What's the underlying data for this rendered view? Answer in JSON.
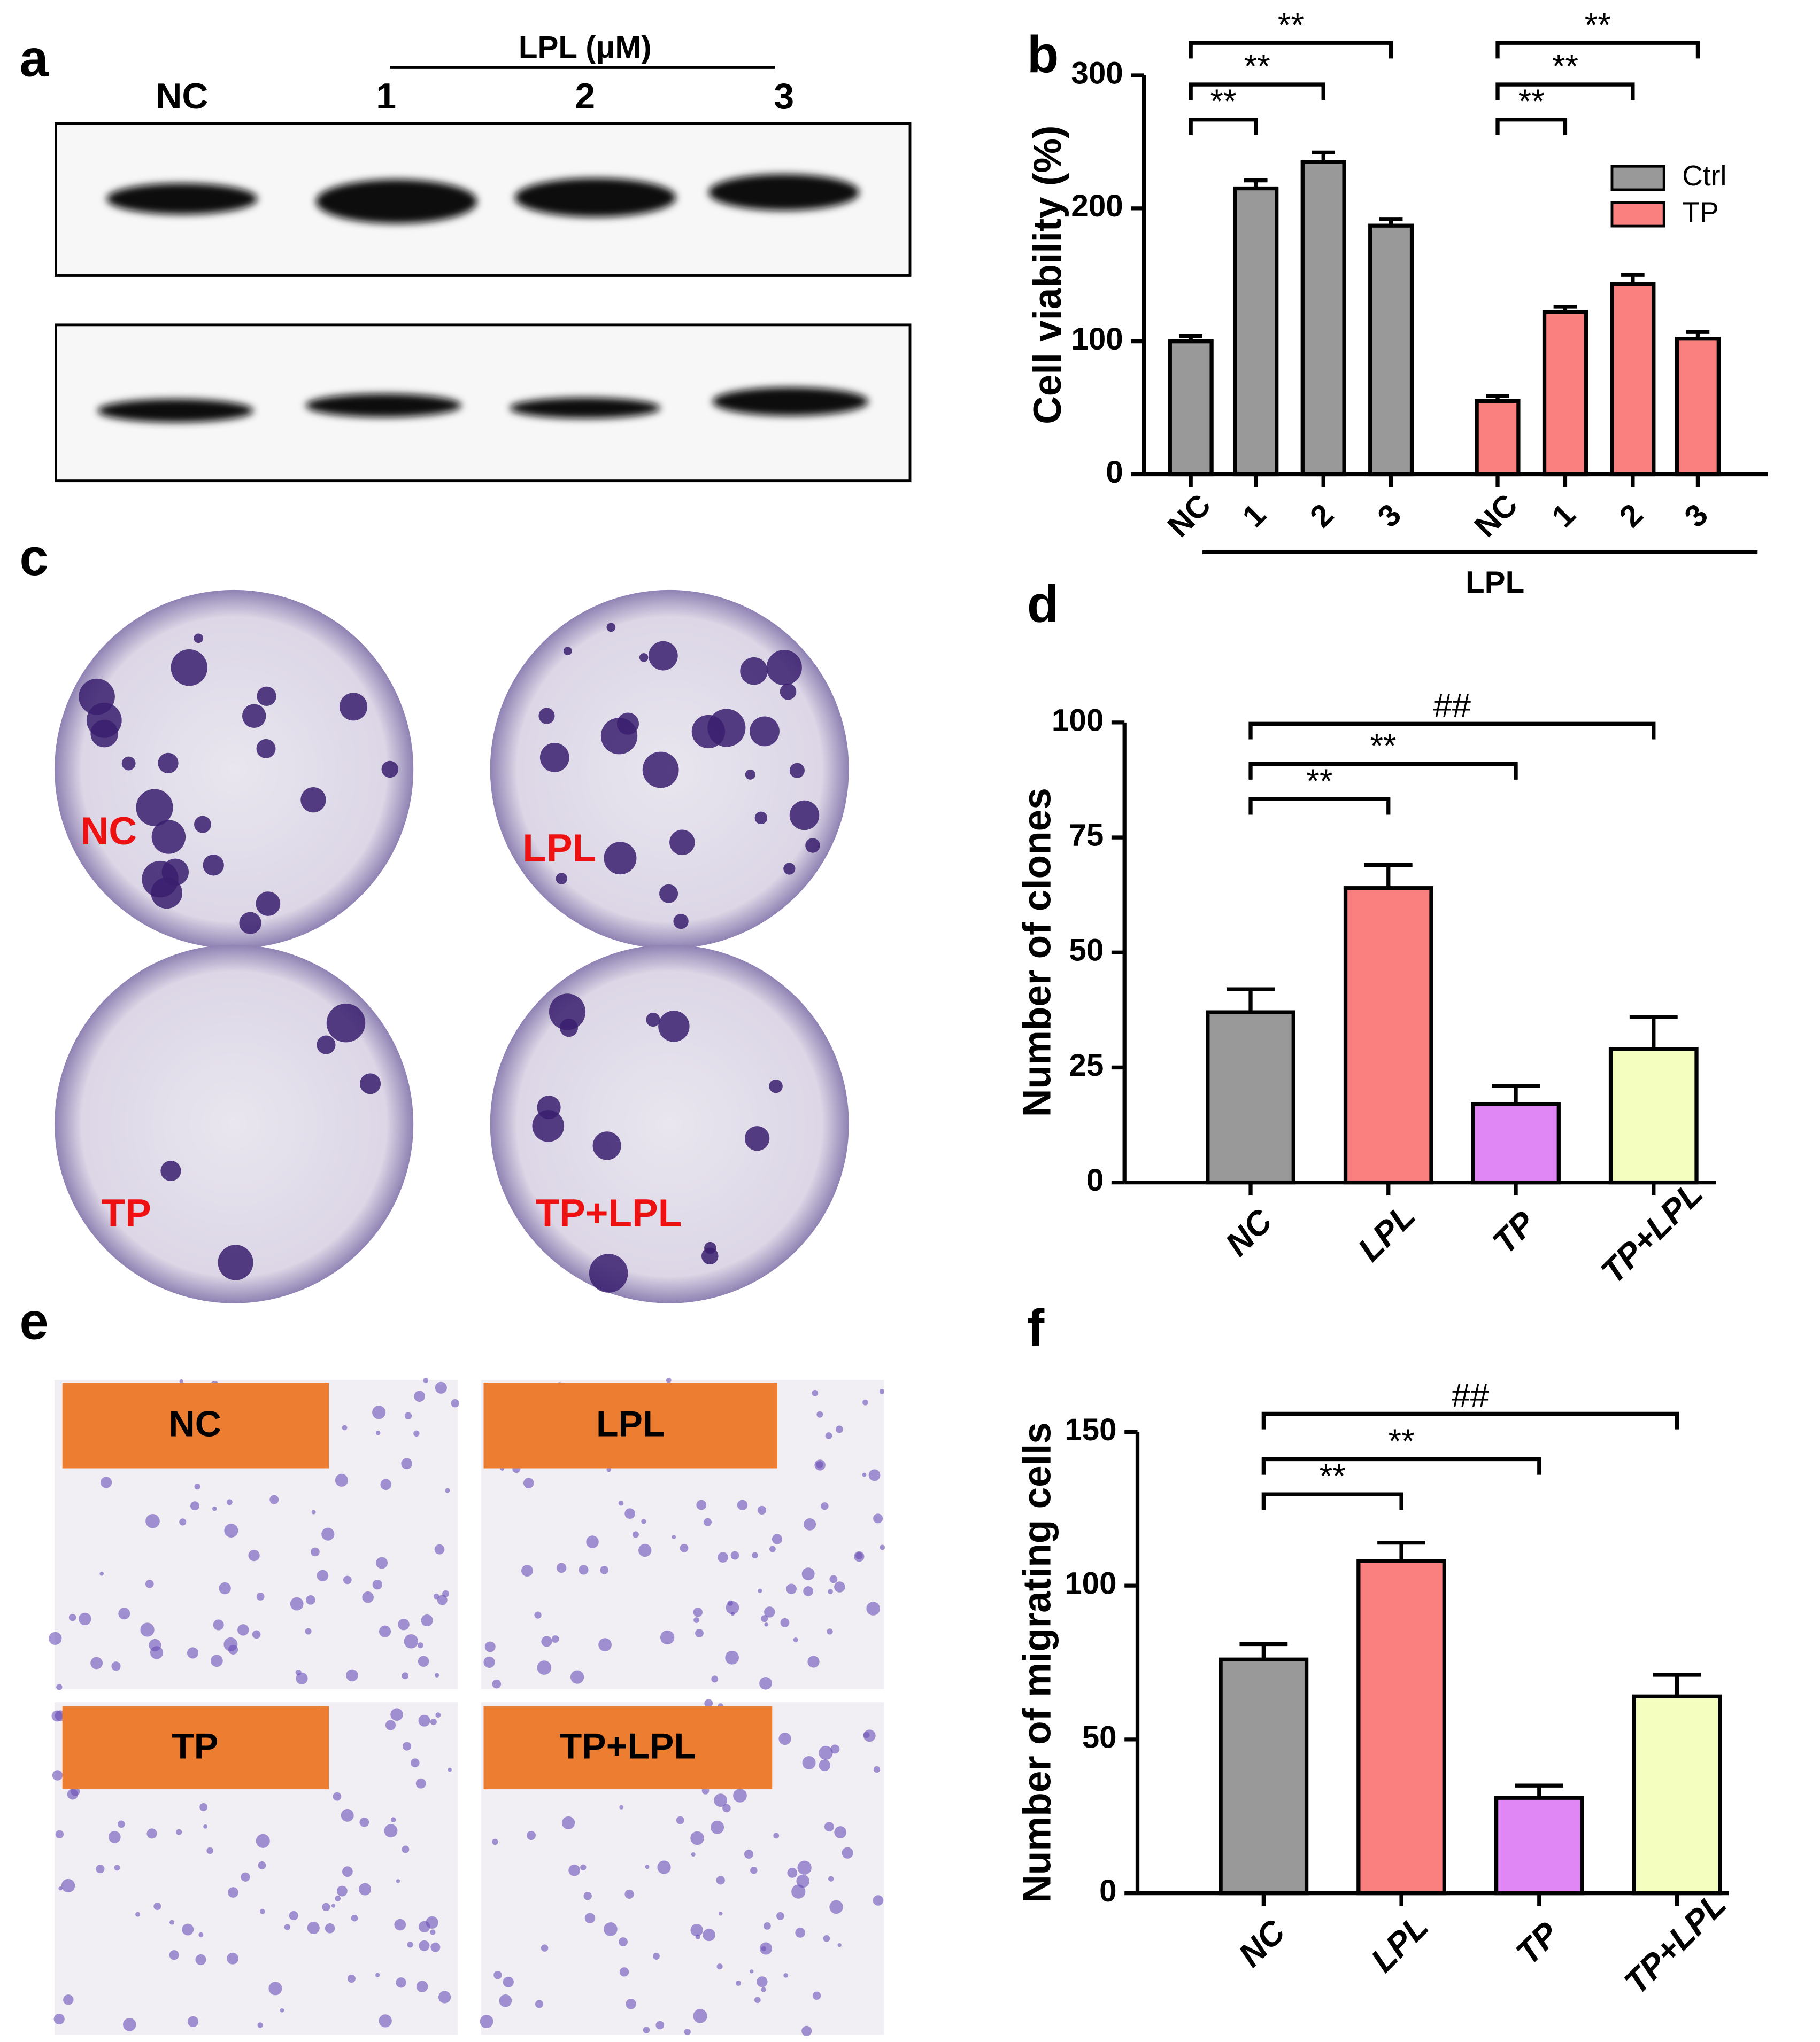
{
  "figure": {
    "panel_letters": [
      "a",
      "b",
      "c",
      "d",
      "e",
      "f"
    ],
    "blot": {
      "group_label": "LPL (μM)",
      "lanes": [
        "NC",
        "1",
        "2",
        "3"
      ]
    },
    "colony_labels": [
      "NC",
      "LPL",
      "TP",
      "TP+LPL"
    ],
    "migration_labels": [
      "NC",
      "LPL",
      "TP",
      "TP+LPL"
    ]
  },
  "chart_data": [
    {
      "type": "bar",
      "ylabel": "Cell viability  (%)",
      "xlabel": "LPL",
      "categories": [
        "NC",
        "1",
        "2",
        "3",
        "NC",
        "1",
        "2",
        "3"
      ],
      "series": [
        {
          "name": "Ctrl",
          "color": "#999999",
          "values": [
            100,
            215,
            235,
            187,
            null,
            null,
            null,
            null
          ],
          "errors": [
            4,
            6,
            7,
            5,
            null,
            null,
            null,
            null
          ]
        },
        {
          "name": "TP",
          "color": "#fa7f7f",
          "values": [
            null,
            null,
            null,
            null,
            55,
            122,
            143,
            102
          ],
          "errors": [
            null,
            null,
            null,
            null,
            4,
            4,
            7,
            5
          ]
        }
      ],
      "ylim": [
        0,
        300
      ],
      "yticks": [
        0,
        100,
        200,
        300
      ],
      "legend": "upper right",
      "annotations": [
        "**",
        "**",
        "**",
        "**",
        "**",
        "**"
      ]
    },
    {
      "type": "bar",
      "ylabel": "Number of clones",
      "categories": [
        "NC",
        "LPL",
        "TP",
        "TP+LPL"
      ],
      "values": [
        37,
        64,
        17,
        29
      ],
      "errors": [
        5,
        5,
        4,
        7
      ],
      "colors": [
        "#999999",
        "#fa7f7f",
        "#e187f5",
        "#f4ffbf"
      ],
      "ylim": [
        0,
        100
      ],
      "yticks": [
        0,
        25,
        50,
        75,
        100
      ],
      "annotations": [
        "**",
        "**",
        "##"
      ]
    },
    {
      "type": "bar",
      "ylabel": "Number of migrating cells",
      "categories": [
        "NC",
        "LPL",
        "TP",
        "TP+LPL"
      ],
      "values": [
        76,
        108,
        31,
        64
      ],
      "errors": [
        5,
        6,
        4,
        7
      ],
      "colors": [
        "#999999",
        "#fa7f7f",
        "#e187f5",
        "#f4ffbf"
      ],
      "ylim": [
        0,
        150
      ],
      "yticks": [
        0,
        50,
        100,
        150
      ],
      "annotations": [
        "**",
        "**",
        "##"
      ]
    }
  ]
}
